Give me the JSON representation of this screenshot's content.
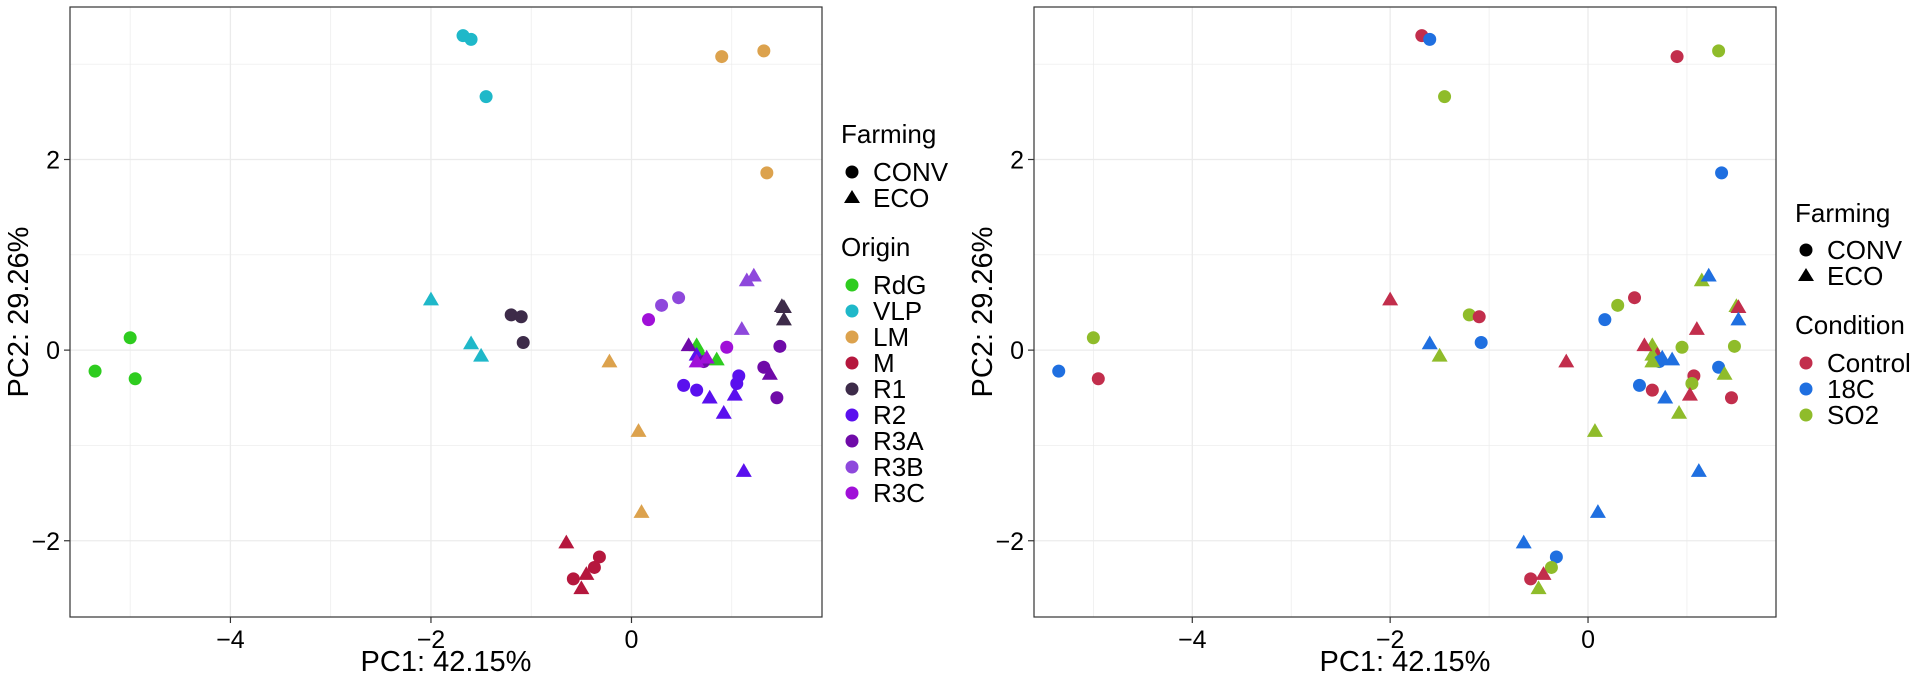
{
  "colors": {
    "origin": {
      "RdG": "#2ecc1f",
      "VLP": "#1fb8c9",
      "LM": "#dca24d",
      "M": "#b5173d",
      "R1": "#3d2b49",
      "R2": "#5a10ee",
      "R3A": "#6f0aa8",
      "R3B": "#8e48dc",
      "R3C": "#a010d8"
    },
    "condition": {
      "Control": "#c22e4c",
      "18C": "#1f6fe0",
      "SO2": "#8fbc2a"
    },
    "grid": "#ebebeb",
    "panel_border": "#333333"
  },
  "legend": {
    "farming_title": "Farming",
    "farming_items": [
      {
        "label": "CONV",
        "shape": "circle"
      },
      {
        "label": "ECO",
        "shape": "triangle"
      }
    ],
    "origin_title": "Origin",
    "origin_items": [
      "RdG",
      "VLP",
      "LM",
      "M",
      "R1",
      "R2",
      "R3A",
      "R3B",
      "R3C"
    ],
    "condition_title": "Condition",
    "condition_items": [
      "Control",
      "18C",
      "SO2"
    ]
  },
  "chart_data": [
    {
      "type": "scatter",
      "title": "",
      "xlabel": "PC1: 42.15%",
      "ylabel": "PC2: 29.26%",
      "xlim": [
        -5.6,
        1.9
      ],
      "ylim": [
        -2.8,
        3.6
      ],
      "xticks": [
        -4,
        -2,
        0
      ],
      "yticks": [
        -2,
        0,
        2
      ],
      "grid": true,
      "color_by": "origin",
      "legend_position": "right",
      "points": [
        {
          "x": -5.35,
          "y": -0.22,
          "origin": "RdG",
          "farming": "CONV",
          "condition": "18C"
        },
        {
          "x": -5.0,
          "y": 0.13,
          "origin": "RdG",
          "farming": "CONV",
          "condition": "SO2"
        },
        {
          "x": -4.95,
          "y": -0.3,
          "origin": "RdG",
          "farming": "CONV",
          "condition": "Control"
        },
        {
          "x": 0.65,
          "y": 0.05,
          "origin": "RdG",
          "farming": "ECO",
          "condition": "SO2"
        },
        {
          "x": 0.7,
          "y": -0.05,
          "origin": "RdG",
          "farming": "ECO",
          "condition": "Control"
        },
        {
          "x": 0.85,
          "y": -0.1,
          "origin": "RdG",
          "farming": "ECO",
          "condition": "18C"
        },
        {
          "x": -1.68,
          "y": 3.3,
          "origin": "VLP",
          "farming": "CONV",
          "condition": "Control"
        },
        {
          "x": -1.6,
          "y": 3.26,
          "origin": "VLP",
          "farming": "CONV",
          "condition": "18C"
        },
        {
          "x": -1.45,
          "y": 2.66,
          "origin": "VLP",
          "farming": "CONV",
          "condition": "SO2"
        },
        {
          "x": -2.0,
          "y": 0.53,
          "origin": "VLP",
          "farming": "ECO",
          "condition": "Control"
        },
        {
          "x": -1.6,
          "y": 0.07,
          "origin": "VLP",
          "farming": "ECO",
          "condition": "18C"
        },
        {
          "x": -1.5,
          "y": -0.06,
          "origin": "VLP",
          "farming": "ECO",
          "condition": "SO2"
        },
        {
          "x": 0.9,
          "y": 3.08,
          "origin": "LM",
          "farming": "CONV",
          "condition": "Control"
        },
        {
          "x": 1.32,
          "y": 3.14,
          "origin": "LM",
          "farming": "CONV",
          "condition": "SO2"
        },
        {
          "x": 1.35,
          "y": 1.86,
          "origin": "LM",
          "farming": "CONV",
          "condition": "18C"
        },
        {
          "x": -0.22,
          "y": -0.12,
          "origin": "LM",
          "farming": "ECO",
          "condition": "Control"
        },
        {
          "x": 0.07,
          "y": -0.85,
          "origin": "LM",
          "farming": "ECO",
          "condition": "SO2"
        },
        {
          "x": 0.1,
          "y": -1.7,
          "origin": "LM",
          "farming": "ECO",
          "condition": "18C"
        },
        {
          "x": -0.32,
          "y": -2.17,
          "origin": "M",
          "farming": "CONV",
          "condition": "18C"
        },
        {
          "x": -0.37,
          "y": -2.28,
          "origin": "M",
          "farming": "CONV",
          "condition": "SO2"
        },
        {
          "x": -0.58,
          "y": -2.4,
          "origin": "M",
          "farming": "CONV",
          "condition": "Control"
        },
        {
          "x": -0.65,
          "y": -2.02,
          "origin": "M",
          "farming": "ECO",
          "condition": "18C"
        },
        {
          "x": -0.45,
          "y": -2.35,
          "origin": "M",
          "farming": "ECO",
          "condition": "Control"
        },
        {
          "x": -0.5,
          "y": -2.5,
          "origin": "M",
          "farming": "ECO",
          "condition": "SO2"
        },
        {
          "x": -1.2,
          "y": 0.37,
          "origin": "R1",
          "farming": "CONV",
          "condition": "SO2"
        },
        {
          "x": -1.1,
          "y": 0.35,
          "origin": "R1",
          "farming": "CONV",
          "condition": "Control"
        },
        {
          "x": -1.08,
          "y": 0.08,
          "origin": "R1",
          "farming": "CONV",
          "condition": "18C"
        },
        {
          "x": 1.5,
          "y": 0.46,
          "origin": "R1",
          "farming": "ECO",
          "condition": "SO2"
        },
        {
          "x": 1.52,
          "y": 0.45,
          "origin": "R1",
          "farming": "ECO",
          "condition": "Control"
        },
        {
          "x": 1.52,
          "y": 0.32,
          "origin": "R1",
          "farming": "ECO",
          "condition": "18C"
        },
        {
          "x": 0.52,
          "y": -0.37,
          "origin": "R2",
          "farming": "CONV",
          "condition": "18C"
        },
        {
          "x": 0.65,
          "y": -0.42,
          "origin": "R2",
          "farming": "CONV",
          "condition": "Control"
        },
        {
          "x": 1.07,
          "y": -0.27,
          "origin": "R2",
          "farming": "CONV",
          "condition": "Control"
        },
        {
          "x": 1.05,
          "y": -0.35,
          "origin": "R2",
          "farming": "CONV",
          "condition": "SO2"
        },
        {
          "x": 0.65,
          "y": -0.05,
          "origin": "R2",
          "farming": "ECO",
          "condition": "SO2"
        },
        {
          "x": 0.78,
          "y": -0.5,
          "origin": "R2",
          "farming": "ECO",
          "condition": "18C"
        },
        {
          "x": 0.92,
          "y": -0.66,
          "origin": "R2",
          "farming": "ECO",
          "condition": "SO2"
        },
        {
          "x": 1.03,
          "y": -0.47,
          "origin": "R2",
          "farming": "ECO",
          "condition": "Control"
        },
        {
          "x": 1.12,
          "y": -1.27,
          "origin": "R2",
          "farming": "ECO",
          "condition": "18C"
        },
        {
          "x": 0.72,
          "y": -0.12,
          "origin": "R3A",
          "farming": "CONV",
          "condition": "18C"
        },
        {
          "x": 1.32,
          "y": -0.18,
          "origin": "R3A",
          "farming": "CONV",
          "condition": "18C"
        },
        {
          "x": 1.45,
          "y": -0.5,
          "origin": "R3A",
          "farming": "CONV",
          "condition": "Control"
        },
        {
          "x": 1.48,
          "y": 0.04,
          "origin": "R3A",
          "farming": "CONV",
          "condition": "SO2"
        },
        {
          "x": 0.57,
          "y": 0.05,
          "origin": "R3A",
          "farming": "ECO",
          "condition": "Control"
        },
        {
          "x": 1.38,
          "y": -0.25,
          "origin": "R3A",
          "farming": "ECO",
          "condition": "SO2"
        },
        {
          "x": 0.3,
          "y": 0.47,
          "origin": "R3B",
          "farming": "CONV",
          "condition": "SO2"
        },
        {
          "x": 0.47,
          "y": 0.55,
          "origin": "R3B",
          "farming": "CONV",
          "condition": "Control"
        },
        {
          "x": 1.1,
          "y": 0.22,
          "origin": "R3B",
          "farming": "ECO",
          "condition": "Control"
        },
        {
          "x": 1.15,
          "y": 0.73,
          "origin": "R3B",
          "farming": "ECO",
          "condition": "SO2"
        },
        {
          "x": 1.22,
          "y": 0.78,
          "origin": "R3B",
          "farming": "ECO",
          "condition": "18C"
        },
        {
          "x": 0.17,
          "y": 0.32,
          "origin": "R3C",
          "farming": "CONV",
          "condition": "18C"
        },
        {
          "x": 0.95,
          "y": 0.03,
          "origin": "R3C",
          "farming": "CONV",
          "condition": "SO2"
        },
        {
          "x": 0.75,
          "y": -0.08,
          "origin": "R3C",
          "farming": "ECO",
          "condition": "18C"
        },
        {
          "x": 0.65,
          "y": -0.12,
          "origin": "R3C",
          "farming": "ECO",
          "condition": "SO2"
        }
      ]
    },
    {
      "type": "scatter",
      "title": "",
      "xlabel": "PC1: 42.15%",
      "ylabel": "PC2: 29.26%",
      "xlim": [
        -5.6,
        1.9
      ],
      "ylim": [
        -2.8,
        3.6
      ],
      "xticks": [
        -4,
        -2,
        0
      ],
      "yticks": [
        -2,
        0,
        2
      ],
      "grid": true,
      "color_by": "condition",
      "legend_position": "right",
      "points_ref": "same points as the first panel, colored by condition"
    }
  ],
  "panels": [
    {
      "xtick_labels": [
        "−4",
        "−2",
        "0"
      ],
      "ytick_labels": [
        "−2",
        "0",
        "2"
      ],
      "xlabel": "PC1: 42.15%",
      "ylabel": "PC2: 29.26%"
    },
    {
      "xtick_labels": [
        "−4",
        "−2",
        "0"
      ],
      "ytick_labels": [
        "−2",
        "0",
        "2"
      ],
      "xlabel": "PC1: 42.15%",
      "ylabel": "PC2: 29.26%"
    }
  ]
}
